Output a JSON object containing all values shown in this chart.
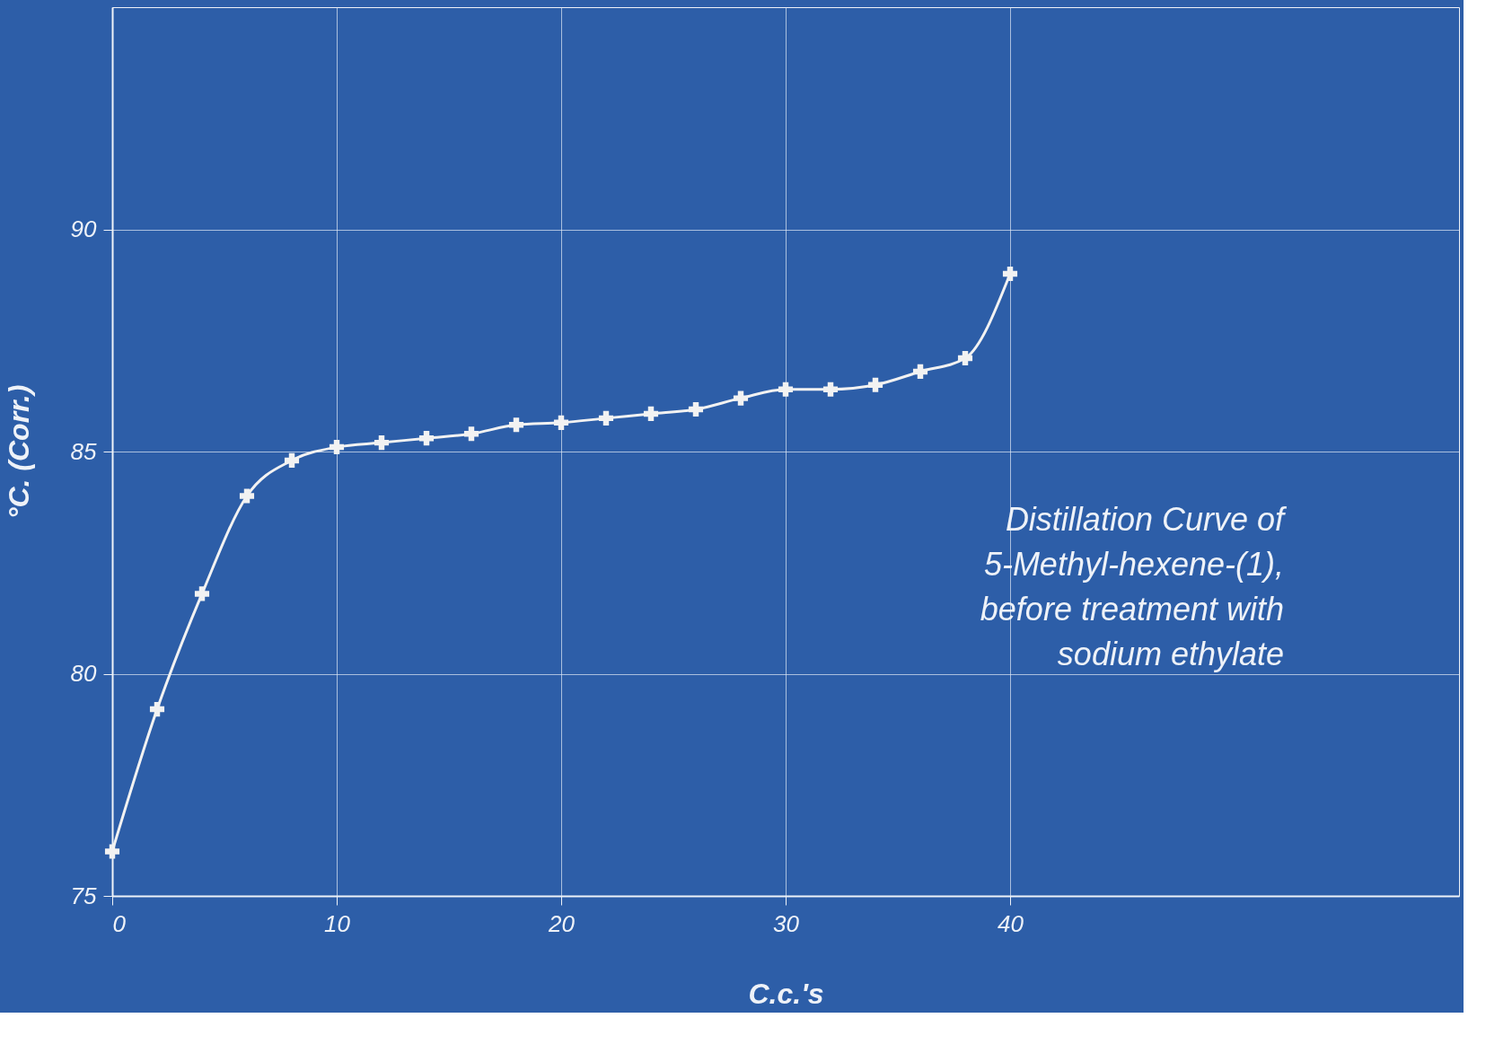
{
  "chart_data": {
    "type": "line",
    "xlabel": "C.c.'s",
    "ylabel": "°C. (Corr.)",
    "annotations": [
      "Distillation Curve  of\n5-Methyl-hexene-(1),\nbefore  treatment with\nsodium ethylate"
    ],
    "x": [
      0,
      2,
      4,
      6,
      8,
      10,
      12,
      14,
      16,
      18,
      20,
      22,
      24,
      26,
      28,
      30,
      32,
      34,
      36,
      38,
      40
    ],
    "series": [
      {
        "color": "#f2f2f2",
        "values": [
          76.0,
          79.2,
          81.8,
          84.0,
          84.8,
          85.1,
          85.2,
          85.3,
          85.4,
          85.6,
          85.65,
          85.75,
          85.85,
          85.95,
          86.2,
          86.4,
          86.4,
          86.5,
          86.8,
          87.1,
          89.0
        ]
      }
    ],
    "xlim": [
      0,
      60
    ],
    "ylim": [
      75,
      95
    ],
    "xticks": [
      0,
      10,
      20,
      30,
      40
    ],
    "yticks": [
      75,
      80,
      85,
      90
    ],
    "grid": true,
    "marker": "cross",
    "line_style": "solid"
  }
}
